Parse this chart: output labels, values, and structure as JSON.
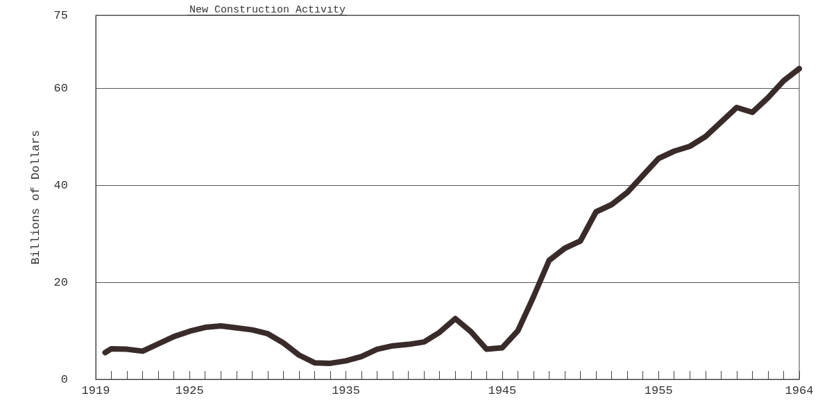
{
  "chart_data": {
    "type": "line",
    "title": "New Construction Activity",
    "ylabel": "Billions of Dollars",
    "x": [
      1919.6,
      1920,
      1921,
      1922,
      1923,
      1924,
      1925,
      1926,
      1927,
      1928,
      1929,
      1930,
      1931,
      1932,
      1933,
      1934,
      1935,
      1936,
      1937,
      1938,
      1939,
      1940,
      1941,
      1942,
      1943,
      1944,
      1945,
      1946,
      1947,
      1948,
      1949,
      1950,
      1951,
      1952,
      1953,
      1954,
      1955,
      1956,
      1957,
      1958,
      1959,
      1960,
      1961,
      1962,
      1963,
      1964
    ],
    "series": [
      {
        "color": "#3a2b2b",
        "values": [
          5.5,
          6.3,
          6.2,
          5.8,
          7.3,
          8.8,
          9.9,
          10.7,
          11,
          10.6,
          10.2,
          9.4,
          7.5,
          5,
          3.4,
          3.3,
          3.8,
          4.7,
          6.2,
          6.9,
          7.2,
          7.7,
          9.7,
          12.5,
          9.8,
          6.2,
          6.5,
          10,
          17,
          24.5,
          27,
          28.5,
          34.5,
          36,
          38.5,
          42,
          45.5,
          47,
          48,
          50,
          53,
          56,
          55,
          58,
          61.5,
          64
        ]
      }
    ],
    "xlim": [
      1919,
      1964
    ],
    "xticks": [
      1919,
      {
        "value": 1920,
        "label": null
      },
      {
        "value": 1921,
        "label": null
      },
      {
        "value": 1922,
        "label": null
      },
      {
        "value": 1923,
        "label": null
      },
      {
        "value": 1924,
        "label": null
      },
      1925,
      {
        "value": 1926,
        "label": null
      },
      {
        "value": 1927,
        "label": null
      },
      {
        "value": 1928,
        "label": null
      },
      {
        "value": 1929,
        "label": null
      },
      {
        "value": 1930,
        "label": null
      },
      {
        "value": 1931,
        "label": null
      },
      {
        "value": 1932,
        "label": null
      },
      {
        "value": 1933,
        "label": null
      },
      {
        "value": 1934,
        "label": null
      },
      1935,
      {
        "value": 1936,
        "label": null
      },
      {
        "value": 1937,
        "label": null
      },
      {
        "value": 1938,
        "label": null
      },
      {
        "value": 1939,
        "label": null
      },
      {
        "value": 1940,
        "label": null
      },
      {
        "value": 1941,
        "label": null
      },
      {
        "value": 1942,
        "label": null
      },
      {
        "value": 1943,
        "label": null
      },
      {
        "value": 1944,
        "label": null
      },
      1945,
      {
        "value": 1946,
        "label": null
      },
      {
        "value": 1947,
        "label": null
      },
      {
        "value": 1948,
        "label": null
      },
      {
        "value": 1949,
        "label": null
      },
      {
        "value": 1950,
        "label": null
      },
      {
        "value": 1951,
        "label": null
      },
      {
        "value": 1952,
        "label": null
      },
      {
        "value": 1953,
        "label": null
      },
      {
        "value": 1954,
        "label": null
      },
      1955,
      {
        "value": 1956,
        "label": null
      },
      {
        "value": 1957,
        "label": null
      },
      {
        "value": 1958,
        "label": null
      },
      {
        "value": 1959,
        "label": null
      },
      {
        "value": 1960,
        "label": null
      },
      {
        "value": 1961,
        "label": null
      },
      {
        "value": 1962,
        "label": null
      },
      {
        "value": 1963,
        "label": null
      },
      1964
    ],
    "ylim": [
      0,
      75
    ],
    "yticks": [
      0,
      20,
      40,
      60,
      75
    ],
    "grid": "y",
    "line_style": "solid"
  }
}
